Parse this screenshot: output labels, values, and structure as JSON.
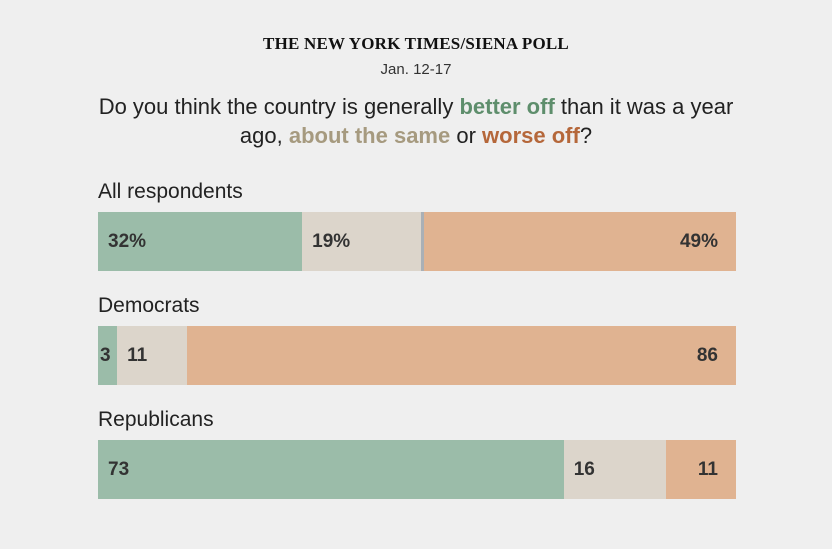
{
  "header": {
    "source": "THE NEW YORK TIMES/SIENA POLL",
    "dates": "Jan. 12-17"
  },
  "question": {
    "part1": "Do you think the country is generally ",
    "better": "better off",
    "part2": " than it was a year ago, ",
    "same": "about the same",
    "part3": " or ",
    "worse": "worse off",
    "part4": "?"
  },
  "colors": {
    "better": "#9bbca9",
    "same": "#dcd5cb",
    "worse": "#e0b391",
    "better_text": "#5e8e6c",
    "same_text": "#a69a7f",
    "worse_text": "#b5673a",
    "divider": "#aab0b6"
  },
  "chart_data": {
    "type": "bar",
    "orientation": "horizontal",
    "stacked": true,
    "categories": [
      "All respondents",
      "Democrats",
      "Republicans"
    ],
    "series": [
      {
        "name": "better off",
        "values": [
          32,
          3,
          73
        ],
        "labels": [
          "32%",
          "3",
          "73"
        ]
      },
      {
        "name": "about the same",
        "values": [
          19,
          11,
          16
        ],
        "labels": [
          "19%",
          "11",
          "16"
        ]
      },
      {
        "name": "worse off",
        "values": [
          49,
          86,
          11
        ],
        "labels": [
          "49%",
          "86",
          "11"
        ]
      }
    ],
    "xlim": [
      0,
      100
    ]
  }
}
